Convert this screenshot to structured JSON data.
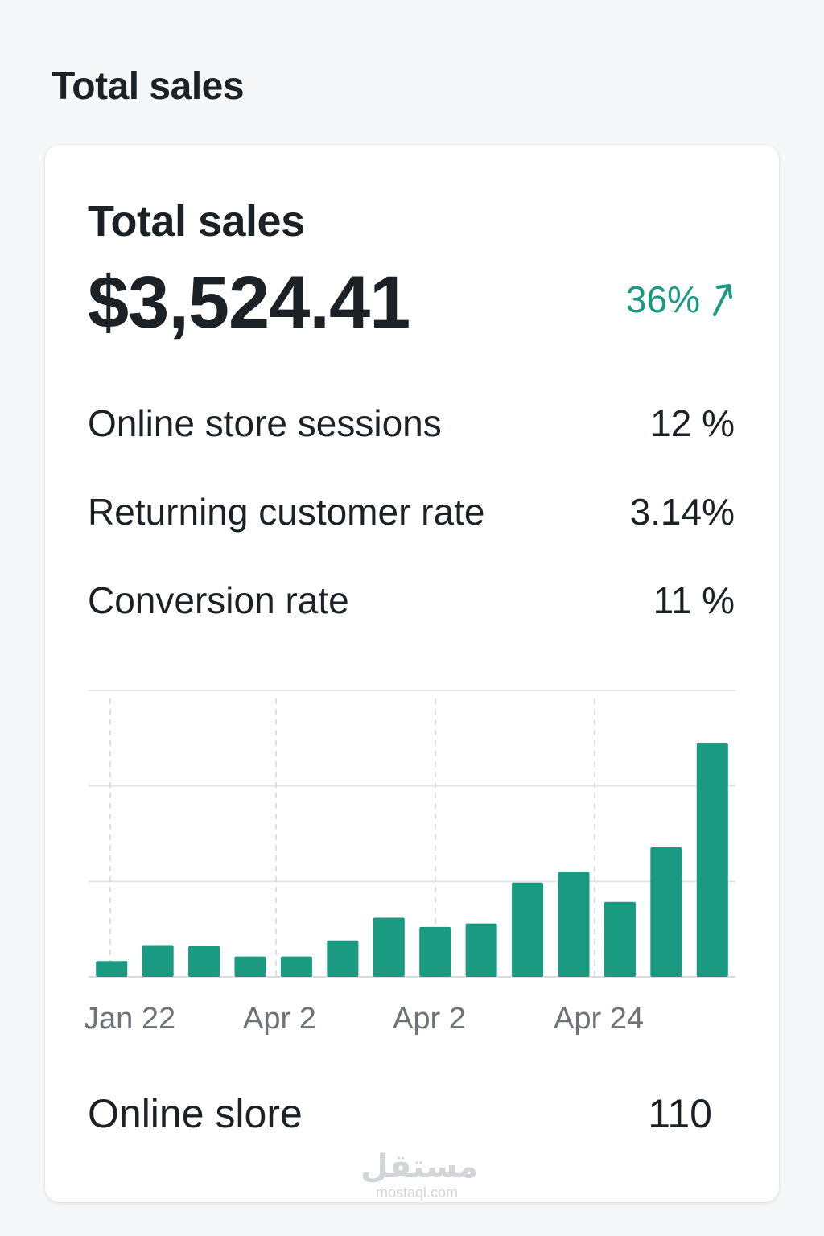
{
  "page": {
    "heading": "Total sales"
  },
  "card": {
    "title": "Total sales",
    "total_value": "$3,524.41",
    "trend": {
      "text": "36%",
      "direction": "up",
      "color": "#1a9a80"
    },
    "metrics": [
      {
        "label": "Online store sessions",
        "value": "12 %"
      },
      {
        "label": "Returning customer rate",
        "value": "3.14%"
      },
      {
        "label": "Conversion rate",
        "value": "11 %"
      }
    ],
    "footer": {
      "label": "Online slore",
      "value": "110"
    }
  },
  "chart_data": {
    "type": "bar",
    "bar_color": "#1a9a80",
    "values": [
      0.7,
      1.4,
      1.35,
      0.9,
      0.9,
      1.6,
      2.6,
      2.2,
      2.35,
      4.15,
      4.6,
      3.3,
      5.7,
      10.3
    ],
    "x_tick_labels": [
      "Jan 22",
      "Apr 2",
      "Apr 2",
      "Apr 24"
    ],
    "ylim": [
      0,
      12.6
    ],
    "grid": true
  },
  "watermark": {
    "logo": "مستقل",
    "url": "mostaql.com"
  }
}
